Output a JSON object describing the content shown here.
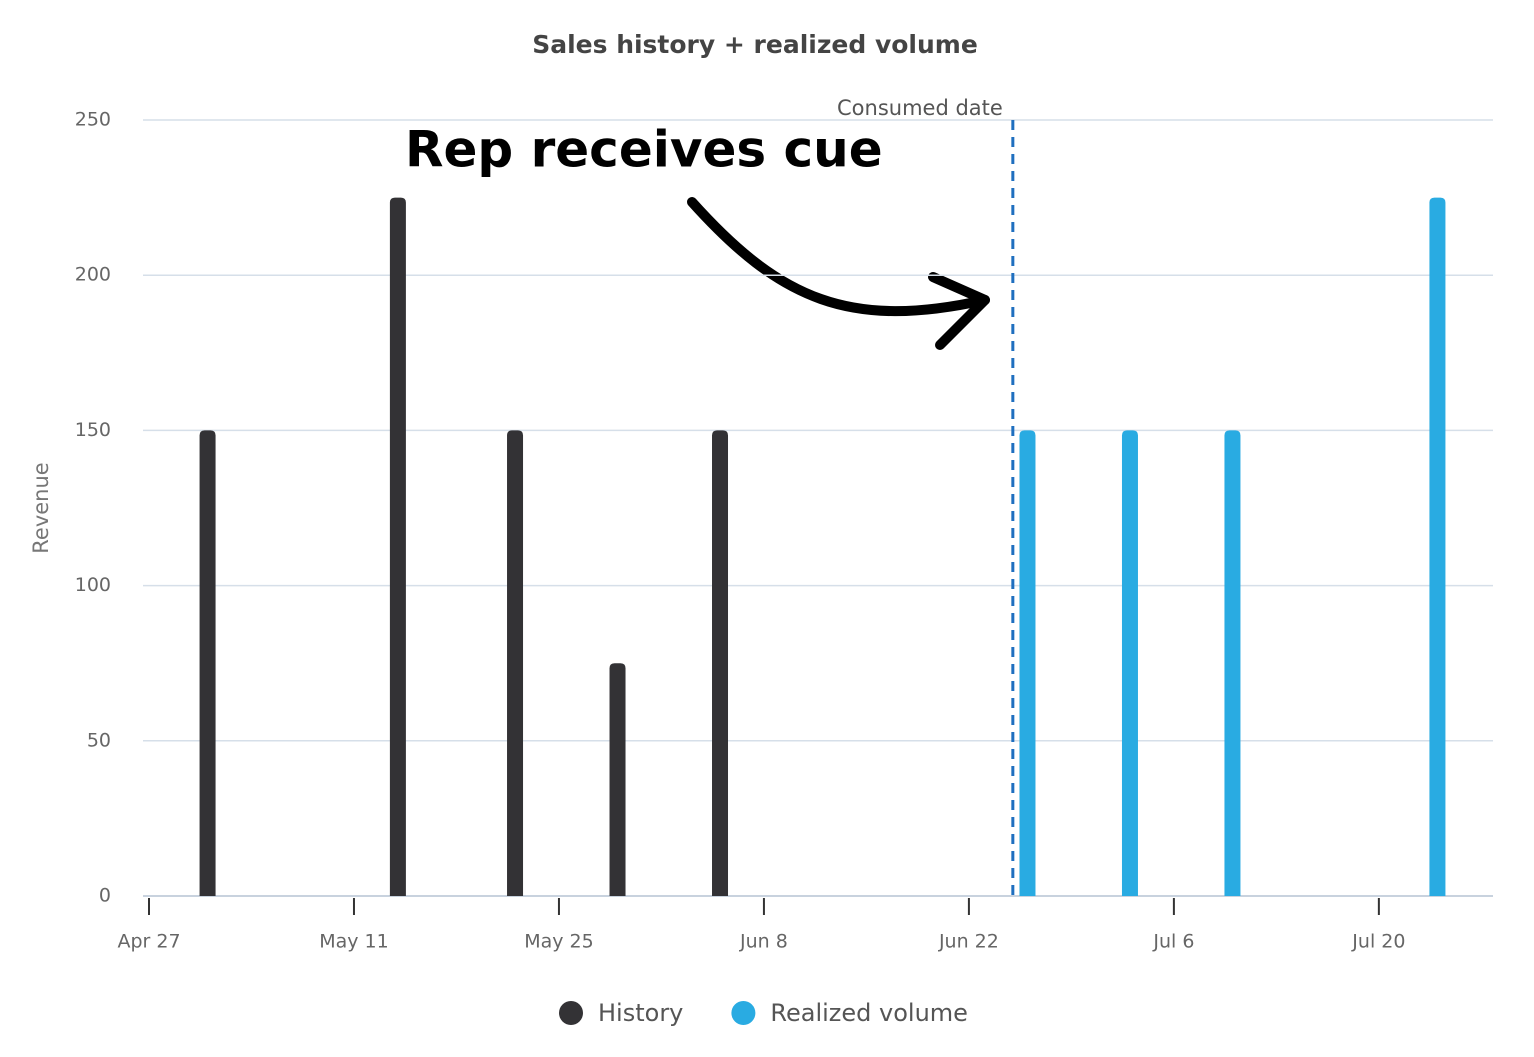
{
  "chart_data": {
    "type": "bar",
    "title": "Sales history + realized volume",
    "y_label": "Revenue",
    "series": [
      {
        "name": "History",
        "color": "#333235",
        "x": [
          "May 1",
          "May 14",
          "May 22",
          "May 29",
          "Jun 5"
        ],
        "values": [
          150,
          225,
          150,
          75,
          150
        ]
      },
      {
        "name": "Realized volume",
        "color": "#29abe2",
        "x": [
          "Jun 26",
          "Jul 3",
          "Jul 10",
          "Jul 24"
        ],
        "values": [
          150,
          150,
          150,
          225
        ]
      }
    ],
    "xlim": [
      "Apr 27",
      "Jul 28"
    ],
    "xticks": [
      "Apr 27",
      "May 11",
      "May 25",
      "Jun 8",
      "Jun 22",
      "Jul 6",
      "Jul 20"
    ],
    "ylim": [
      0,
      250
    ],
    "yticks": [
      0,
      50,
      100,
      150,
      200,
      250
    ],
    "grid": true,
    "annotations": [
      {
        "text": "Consumed date",
        "x": "Jun 25"
      },
      {
        "text": "Rep receives cue"
      }
    ],
    "legend": "bottom"
  }
}
